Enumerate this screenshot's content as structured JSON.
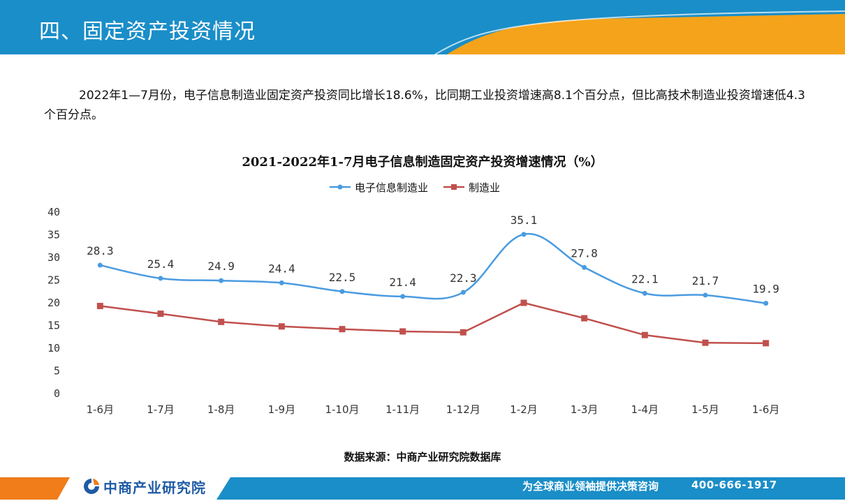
{
  "header": {
    "title": "四、固定资产投资情况",
    "bar_color": "#1a8ec8",
    "accent_color": "#f5a31a"
  },
  "intro_text": "2022年1—7月份，电子信息制造业固定资产投资同比增长18.6%，比同期工业投资增速高8.1个百分点，但比高技术制造业投资增速低4.3个百分点。",
  "chart_data": {
    "type": "line",
    "title": "2021-2022年1-7月电子信息制造固定资产投资增速情况（%）",
    "categories": [
      "1-6月",
      "1-7月",
      "1-8月",
      "1-9月",
      "1-10月",
      "1-11月",
      "1-12月",
      "1-2月",
      "1-3月",
      "1-4月",
      "1-5月",
      "1-6月"
    ],
    "series": [
      {
        "name": "电子信息制造业",
        "color": "#4a9be0",
        "marker": "circle",
        "smooth": true,
        "show_labels": true,
        "values": [
          28.3,
          25.4,
          24.9,
          24.4,
          22.5,
          21.4,
          22.3,
          35.1,
          27.8,
          22.1,
          21.7,
          19.9
        ]
      },
      {
        "name": "制造业",
        "color": "#c0504d",
        "marker": "square",
        "smooth": false,
        "show_labels": false,
        "values": [
          19.3,
          17.6,
          15.8,
          14.8,
          14.2,
          13.7,
          13.5,
          20.0,
          16.6,
          12.9,
          11.2,
          11.1
        ]
      }
    ],
    "ylim": [
      0,
      40
    ],
    "yticks": [
      0,
      5,
      10,
      15,
      20,
      25,
      30,
      35,
      40
    ],
    "grid": false,
    "legend": "top-center"
  },
  "source": "数据来源：中商产业研究院数据库",
  "footer": {
    "logo_text": "中商产业研究院",
    "slogan": "为全球商业领袖提供决策咨询",
    "phone": "400-666-1917",
    "bar_color": "#1a8ec8",
    "accent_color": "#f07c1a"
  }
}
